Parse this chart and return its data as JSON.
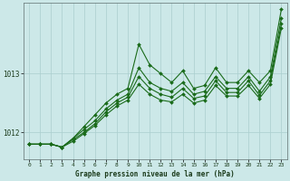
{
  "background_color": "#cce8e8",
  "plot_bg_color": "#cce8e8",
  "line_color": "#1a6b1a",
  "grid_color": "#aacece",
  "xlabel": "Graphe pression niveau de la mer (hPa)",
  "yticks": [
    1012,
    1013
  ],
  "xticks": [
    0,
    1,
    2,
    3,
    4,
    5,
    6,
    7,
    8,
    9,
    10,
    11,
    12,
    13,
    14,
    15,
    16,
    17,
    18,
    19,
    20,
    21,
    22,
    23
  ],
  "xlim": [
    -0.5,
    23.5
  ],
  "ylim": [
    1011.55,
    1014.2
  ],
  "line1": [
    1011.8,
    1011.8,
    1011.8,
    1011.75,
    1011.9,
    1012.1,
    1012.3,
    1012.5,
    1012.65,
    1012.75,
    1013.5,
    1013.15,
    1013.0,
    1012.85,
    1013.05,
    1012.75,
    1012.8,
    1013.1,
    1012.85,
    1012.85,
    1013.05,
    1012.85,
    1013.05,
    1014.1
  ],
  "line2": [
    1011.8,
    1011.8,
    1011.8,
    1011.75,
    1011.9,
    1012.05,
    1012.2,
    1012.4,
    1012.55,
    1012.65,
    1013.1,
    1012.85,
    1012.75,
    1012.7,
    1012.85,
    1012.65,
    1012.7,
    1012.95,
    1012.75,
    1012.75,
    1012.95,
    1012.7,
    1012.95,
    1013.95
  ],
  "line3": [
    1011.8,
    1011.8,
    1011.8,
    1011.75,
    1011.88,
    1012.0,
    1012.15,
    1012.35,
    1012.5,
    1012.6,
    1012.95,
    1012.75,
    1012.65,
    1012.6,
    1012.75,
    1012.58,
    1012.62,
    1012.88,
    1012.68,
    1012.68,
    1012.88,
    1012.63,
    1012.88,
    1013.85
  ],
  "line4": [
    1011.8,
    1011.8,
    1011.8,
    1011.75,
    1011.85,
    1011.98,
    1012.12,
    1012.3,
    1012.45,
    1012.55,
    1012.82,
    1012.65,
    1012.55,
    1012.52,
    1012.65,
    1012.5,
    1012.55,
    1012.8,
    1012.62,
    1012.62,
    1012.8,
    1012.58,
    1012.82,
    1013.78
  ]
}
